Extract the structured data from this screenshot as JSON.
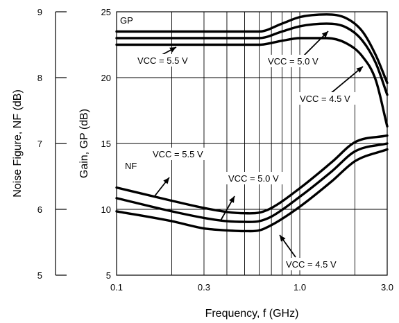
{
  "chart_data": {
    "type": "line",
    "xlabel": "Frequency, f (GHz)",
    "x_scale": "log",
    "xlim": [
      0.1,
      3.0
    ],
    "x_ticks": [
      "0.1",
      "0.3",
      "1.0",
      "3.0"
    ],
    "x_minor_grid": [
      0.2,
      0.4,
      0.5,
      0.6,
      0.7,
      0.8,
      0.9,
      2.0
    ],
    "y_axes": [
      {
        "label": "Noise Figure, NF (dB)",
        "ylim": [
          5,
          9
        ],
        "ticks": [
          "5",
          "6",
          "7",
          "8",
          "9"
        ]
      },
      {
        "label": "Gain, GP (dB)",
        "ylim": [
          5,
          25
        ],
        "ticks": [
          "5",
          "10",
          "15",
          "20",
          "25"
        ]
      }
    ],
    "grid": true,
    "series": [
      {
        "group": "GP",
        "axis": "gain",
        "vcc": "5.5 V",
        "points": [
          [
            0.1,
            23.5
          ],
          [
            0.3,
            23.5
          ],
          [
            0.6,
            23.5
          ],
          [
            0.8,
            24.1
          ],
          [
            1.0,
            24.6
          ],
          [
            1.4,
            24.8
          ],
          [
            1.8,
            24.5
          ],
          [
            2.2,
            23.5
          ],
          [
            2.6,
            21.7
          ],
          [
            3.0,
            19.6
          ]
        ]
      },
      {
        "group": "GP",
        "axis": "gain",
        "vcc": "5.0 V",
        "points": [
          [
            0.1,
            23.0
          ],
          [
            0.3,
            23.0
          ],
          [
            0.6,
            23.0
          ],
          [
            0.8,
            23.5
          ],
          [
            1.0,
            23.9
          ],
          [
            1.4,
            24.1
          ],
          [
            1.8,
            23.8
          ],
          [
            2.2,
            22.8
          ],
          [
            2.6,
            21.1
          ],
          [
            3.0,
            18.7
          ]
        ]
      },
      {
        "group": "GP",
        "axis": "gain",
        "vcc": "4.5 V",
        "points": [
          [
            0.1,
            22.5
          ],
          [
            0.3,
            22.5
          ],
          [
            0.6,
            22.5
          ],
          [
            0.8,
            22.8
          ],
          [
            1.0,
            23.0
          ],
          [
            1.4,
            23.0
          ],
          [
            1.8,
            22.6
          ],
          [
            2.2,
            21.6
          ],
          [
            2.6,
            19.8
          ],
          [
            3.0,
            16.3
          ]
        ]
      },
      {
        "group": "NF",
        "axis": "nf",
        "vcc": "5.5 V",
        "points": [
          [
            0.1,
            6.33
          ],
          [
            0.2,
            6.13
          ],
          [
            0.3,
            6.02
          ],
          [
            0.4,
            5.96
          ],
          [
            0.5,
            5.94
          ],
          [
            0.6,
            5.95
          ],
          [
            0.7,
            6.02
          ],
          [
            1.0,
            6.32
          ],
          [
            1.5,
            6.72
          ],
          [
            2.0,
            7.02
          ],
          [
            3.0,
            7.12
          ]
        ]
      },
      {
        "group": "NF",
        "axis": "nf",
        "vcc": "5.0 V",
        "points": [
          [
            0.1,
            6.17
          ],
          [
            0.2,
            5.97
          ],
          [
            0.3,
            5.87
          ],
          [
            0.4,
            5.82
          ],
          [
            0.5,
            5.81
          ],
          [
            0.6,
            5.82
          ],
          [
            0.7,
            5.89
          ],
          [
            1.0,
            6.19
          ],
          [
            1.5,
            6.58
          ],
          [
            2.0,
            6.88
          ],
          [
            3.0,
            7.0
          ]
        ]
      },
      {
        "group": "NF",
        "axis": "nf",
        "vcc": "4.5 V",
        "points": [
          [
            0.1,
            5.97
          ],
          [
            0.2,
            5.82
          ],
          [
            0.3,
            5.71
          ],
          [
            0.4,
            5.68
          ],
          [
            0.5,
            5.67
          ],
          [
            0.6,
            5.68
          ],
          [
            0.7,
            5.76
          ],
          [
            1.0,
            6.04
          ],
          [
            1.5,
            6.43
          ],
          [
            2.0,
            6.73
          ],
          [
            3.0,
            6.91
          ]
        ]
      }
    ],
    "annotations": [
      {
        "id": "gp",
        "text": "GP"
      },
      {
        "id": "nf",
        "text": "NF"
      },
      {
        "id": "gp55",
        "text": "VCC = 5.5 V"
      },
      {
        "id": "gp50",
        "text": "VCC = 5.0 V"
      },
      {
        "id": "gp45",
        "text": "VCC = 4.5 V"
      },
      {
        "id": "nf55",
        "text": "VCC = 5.5 V"
      },
      {
        "id": "nf50",
        "text": "VCC = 5.0 V"
      },
      {
        "id": "nf45",
        "text": "VCC = 4.5 V"
      }
    ]
  }
}
